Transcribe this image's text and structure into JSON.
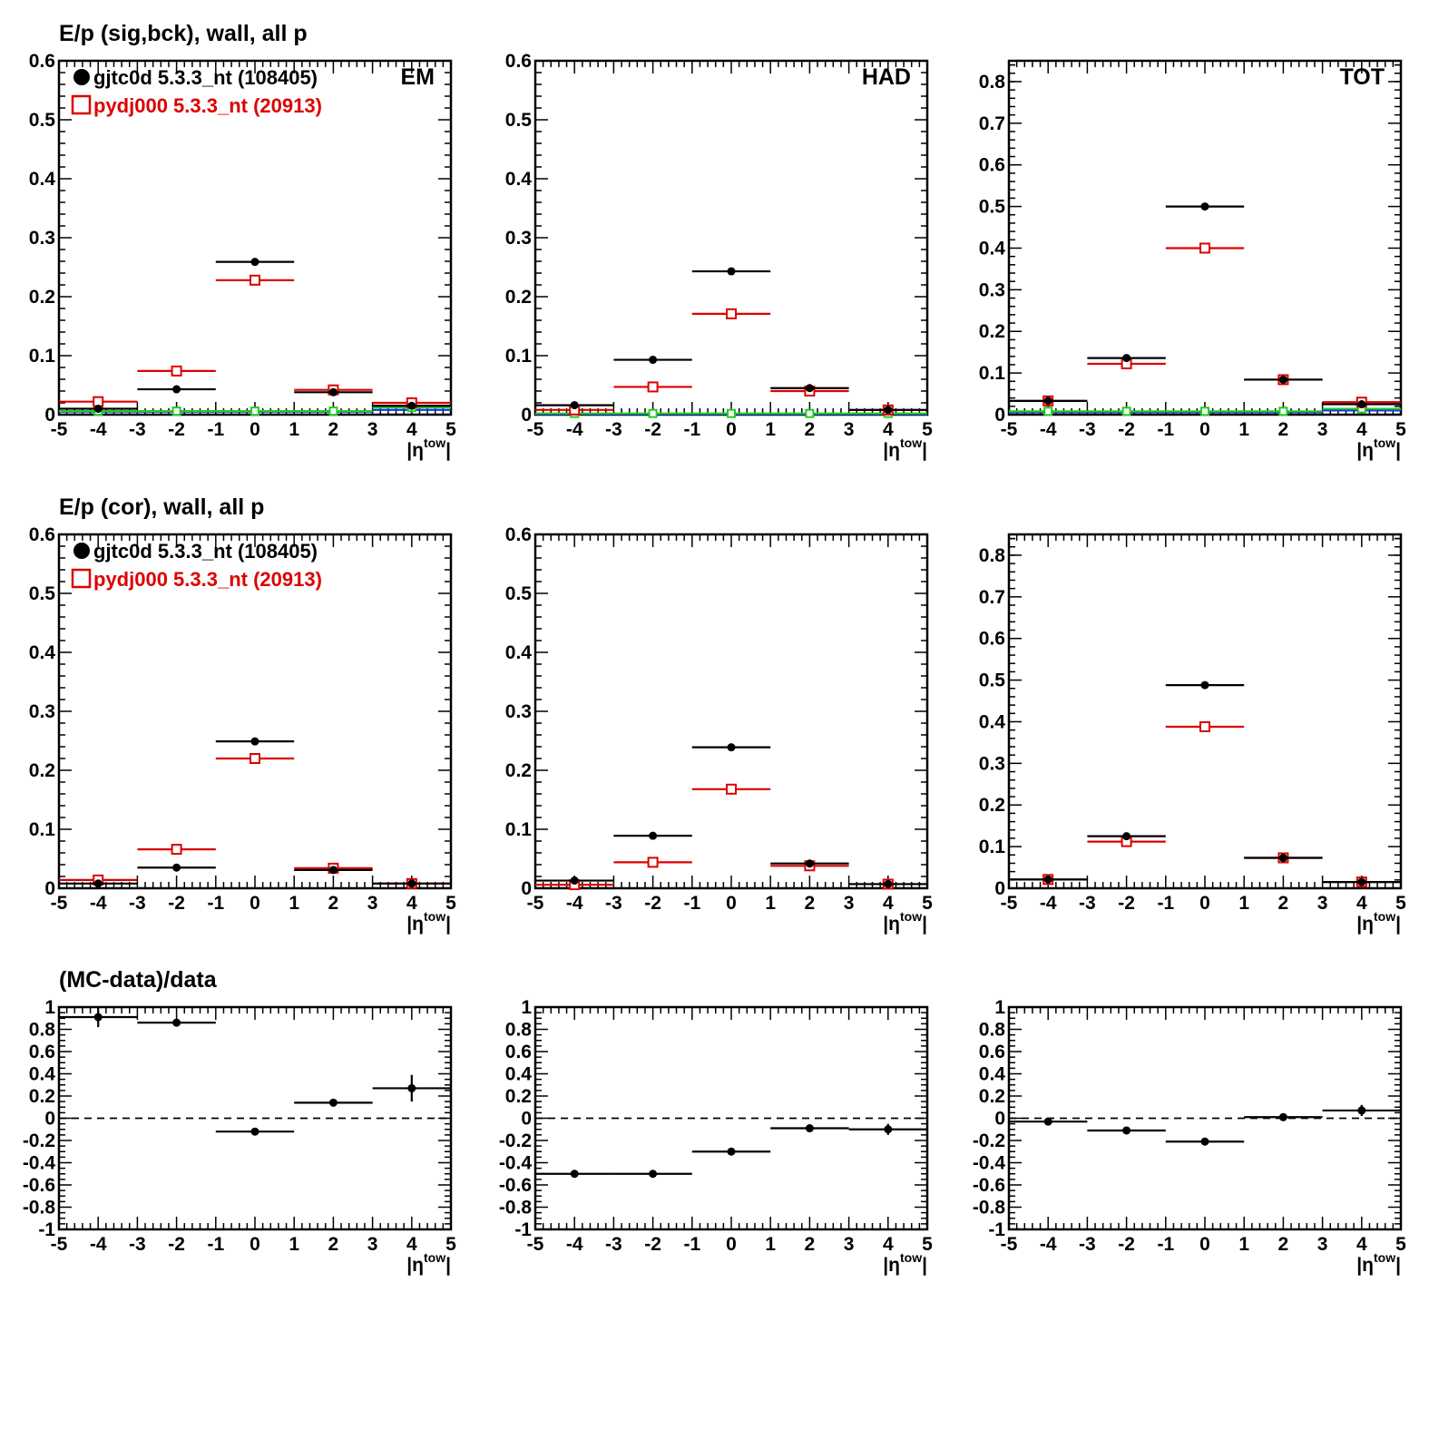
{
  "chart_data": [
    {
      "type": "scatter",
      "row_title": "E/p (sig,bck), wall, all p",
      "corner_label": "EM",
      "xlabel": "|η^tow|",
      "xlim": [
        -5,
        5
      ],
      "ylim": [
        0,
        0.6
      ],
      "xticks": [
        -5,
        -4,
        -3,
        -2,
        -1,
        0,
        1,
        2,
        3,
        4,
        5
      ],
      "yticks": [
        0,
        0.1,
        0.2,
        0.3,
        0.4,
        0.5,
        0.6
      ],
      "legend": [
        {
          "label": "gjtc0d 5.3.3_nt (108405)",
          "color": "#000000",
          "marker": "filled-circle"
        },
        {
          "label": "pydj000 5.3.3_nt (20913)",
          "color": "#dd0000",
          "marker": "open-square"
        }
      ],
      "series": [
        {
          "style": "black-dot",
          "x": [
            -4,
            -2,
            0,
            2,
            4
          ],
          "y": [
            0.01,
            0.043,
            0.259,
            0.038,
            0.015
          ]
        },
        {
          "style": "red-square",
          "x": [
            -4,
            -2,
            0,
            2,
            4
          ],
          "y": [
            0.022,
            0.074,
            0.228,
            0.042,
            0.02
          ]
        },
        {
          "style": "green",
          "x": [
            -4,
            -2,
            0,
            2,
            4
          ],
          "y": [
            0.006,
            0.006,
            0.006,
            0.006,
            0.012
          ]
        },
        {
          "style": "blue",
          "x": [
            -4,
            -2,
            0,
            2,
            4
          ],
          "y": [
            0.005,
            0.005,
            0.005,
            0.005,
            0.008
          ]
        }
      ]
    },
    {
      "type": "scatter",
      "corner_label": "HAD",
      "xlabel": "|η^tow|",
      "xlim": [
        -5,
        5
      ],
      "ylim": [
        0,
        0.6
      ],
      "xticks": [
        -5,
        -4,
        -3,
        -2,
        -1,
        0,
        1,
        2,
        3,
        4,
        5
      ],
      "yticks": [
        0,
        0.1,
        0.2,
        0.3,
        0.4,
        0.5,
        0.6
      ],
      "series": [
        {
          "style": "black-dot",
          "x": [
            -4,
            -2,
            0,
            2,
            4
          ],
          "y": [
            0.016,
            0.093,
            0.243,
            0.045,
            0.008
          ]
        },
        {
          "style": "red-square",
          "x": [
            -4,
            -2,
            0,
            2,
            4
          ],
          "y": [
            0.008,
            0.047,
            0.171,
            0.04,
            0.008
          ]
        },
        {
          "style": "green",
          "x": [
            -4,
            -2,
            0,
            2,
            4
          ],
          "y": [
            0.002,
            0.002,
            0.002,
            0.002,
            0.002
          ]
        },
        {
          "style": "blue",
          "x": [
            -4,
            -2,
            0,
            2,
            4
          ],
          "y": [
            0.001,
            0.001,
            0.001,
            0.001,
            0.001
          ]
        }
      ]
    },
    {
      "type": "scatter",
      "corner_label": "TOT",
      "xlabel": "|η^tow|",
      "xlim": [
        -5,
        5
      ],
      "ylim": [
        0,
        0.85
      ],
      "xticks": [
        -5,
        -4,
        -3,
        -2,
        -1,
        0,
        1,
        2,
        3,
        4,
        5
      ],
      "yticks": [
        0,
        0.1,
        0.2,
        0.3,
        0.4,
        0.5,
        0.6,
        0.7,
        0.8
      ],
      "series": [
        {
          "style": "black-dot",
          "x": [
            -4,
            -2,
            0,
            2,
            4
          ],
          "y": [
            0.033,
            0.136,
            0.5,
            0.084,
            0.025
          ]
        },
        {
          "style": "red-square",
          "x": [
            -4,
            -2,
            0,
            2,
            4
          ],
          "y": [
            0.033,
            0.122,
            0.4,
            0.084,
            0.03
          ]
        },
        {
          "style": "green",
          "x": [
            -4,
            -2,
            0,
            2,
            4
          ],
          "y": [
            0.008,
            0.008,
            0.008,
            0.008,
            0.014
          ]
        },
        {
          "style": "blue",
          "x": [
            -4,
            -2,
            0,
            2,
            4
          ],
          "y": [
            0.006,
            0.006,
            0.006,
            0.006,
            0.01
          ]
        }
      ]
    },
    {
      "type": "scatter",
      "row_title": "E/p (cor), wall, all p",
      "xlabel": "|η^tow|",
      "xlim": [
        -5,
        5
      ],
      "ylim": [
        0,
        0.6
      ],
      "xticks": [
        -5,
        -4,
        -3,
        -2,
        -1,
        0,
        1,
        2,
        3,
        4,
        5
      ],
      "yticks": [
        0,
        0.1,
        0.2,
        0.3,
        0.4,
        0.5,
        0.6
      ],
      "legend": [
        {
          "label": "gjtc0d 5.3.3_nt (108405)",
          "color": "#000000",
          "marker": "filled-circle"
        },
        {
          "label": "pydj000 5.3.3_nt (20913)",
          "color": "#dd0000",
          "marker": "open-square"
        }
      ],
      "series": [
        {
          "style": "black-dot",
          "x": [
            -4,
            -2,
            0,
            2,
            4
          ],
          "y": [
            0.008,
            0.035,
            0.249,
            0.031,
            0.008
          ]
        },
        {
          "style": "red-square",
          "x": [
            -4,
            -2,
            0,
            2,
            4
          ],
          "y": [
            0.014,
            0.066,
            0.22,
            0.034,
            0.008
          ]
        }
      ]
    },
    {
      "type": "scatter",
      "xlabel": "|η^tow|",
      "xlim": [
        -5,
        5
      ],
      "ylim": [
        0,
        0.6
      ],
      "xticks": [
        -5,
        -4,
        -3,
        -2,
        -1,
        0,
        1,
        2,
        3,
        4,
        5
      ],
      "yticks": [
        0,
        0.1,
        0.2,
        0.3,
        0.4,
        0.5,
        0.6
      ],
      "series": [
        {
          "style": "black-dot",
          "x": [
            -4,
            -2,
            0,
            2,
            4
          ],
          "y": [
            0.013,
            0.089,
            0.239,
            0.042,
            0.007
          ]
        },
        {
          "style": "red-square",
          "x": [
            -4,
            -2,
            0,
            2,
            4
          ],
          "y": [
            0.006,
            0.044,
            0.168,
            0.038,
            0.007
          ]
        }
      ]
    },
    {
      "type": "scatter",
      "xlabel": "|η^tow|",
      "xlim": [
        -5,
        5
      ],
      "ylim": [
        0,
        0.85
      ],
      "xticks": [
        -5,
        -4,
        -3,
        -2,
        -1,
        0,
        1,
        2,
        3,
        4,
        5
      ],
      "yticks": [
        0,
        0.1,
        0.2,
        0.3,
        0.4,
        0.5,
        0.6,
        0.7,
        0.8
      ],
      "series": [
        {
          "style": "black-dot",
          "x": [
            -4,
            -2,
            0,
            2,
            4
          ],
          "y": [
            0.021,
            0.125,
            0.488,
            0.073,
            0.015
          ]
        },
        {
          "style": "red-square",
          "x": [
            -4,
            -2,
            0,
            2,
            4
          ],
          "y": [
            0.021,
            0.112,
            0.388,
            0.073,
            0.015
          ]
        }
      ]
    },
    {
      "type": "scatter",
      "row_title": "(MC-data)/data",
      "xlabel": "|η^tow|",
      "xlim": [
        -5,
        5
      ],
      "ylim": [
        -1,
        1
      ],
      "xticks": [
        -5,
        -4,
        -3,
        -2,
        -1,
        0,
        1,
        2,
        3,
        4,
        5
      ],
      "yticks": [
        -1,
        -0.8,
        -0.6,
        -0.4,
        -0.2,
        0,
        0.2,
        0.4,
        0.6,
        0.8,
        1
      ],
      "reference_line": 0,
      "series": [
        {
          "style": "black-dot",
          "x": [
            -4,
            -2,
            0,
            2,
            4
          ],
          "y": [
            0.91,
            0.86,
            -0.12,
            0.14,
            0.27
          ],
          "yerr": [
            0.09,
            0.02,
            0.02,
            0.02,
            0.12
          ]
        }
      ]
    },
    {
      "type": "scatter",
      "xlabel": "|η^tow|",
      "xlim": [
        -5,
        5
      ],
      "ylim": [
        -1,
        1
      ],
      "xticks": [
        -5,
        -4,
        -3,
        -2,
        -1,
        0,
        1,
        2,
        3,
        4,
        5
      ],
      "yticks": [
        -1,
        -0.8,
        -0.6,
        -0.4,
        -0.2,
        0,
        0.2,
        0.4,
        0.6,
        0.8,
        1
      ],
      "reference_line": 0,
      "series": [
        {
          "style": "black-dot",
          "x": [
            -4,
            -2,
            0,
            2,
            4
          ],
          "y": [
            -0.5,
            -0.5,
            -0.3,
            -0.09,
            -0.1
          ],
          "yerr": [
            0.02,
            0.02,
            0.02,
            0.02,
            0.05
          ]
        }
      ]
    },
    {
      "type": "scatter",
      "xlabel": "|η^tow|",
      "xlim": [
        -5,
        5
      ],
      "ylim": [
        -1,
        1
      ],
      "xticks": [
        -5,
        -4,
        -3,
        -2,
        -1,
        0,
        1,
        2,
        3,
        4,
        5
      ],
      "yticks": [
        -1,
        -0.8,
        -0.6,
        -0.4,
        -0.2,
        0,
        0.2,
        0.4,
        0.6,
        0.8,
        1
      ],
      "reference_line": 0,
      "series": [
        {
          "style": "black-dot",
          "x": [
            -4,
            -2,
            0,
            2,
            4
          ],
          "y": [
            -0.03,
            -0.11,
            -0.21,
            0.01,
            0.07
          ],
          "yerr": [
            0.02,
            0.02,
            0.02,
            0.02,
            0.05
          ]
        }
      ]
    }
  ],
  "colors": {
    "data": "#000000",
    "mc": "#dd0000",
    "green": "#22cc22",
    "blue": "#1133ee"
  }
}
